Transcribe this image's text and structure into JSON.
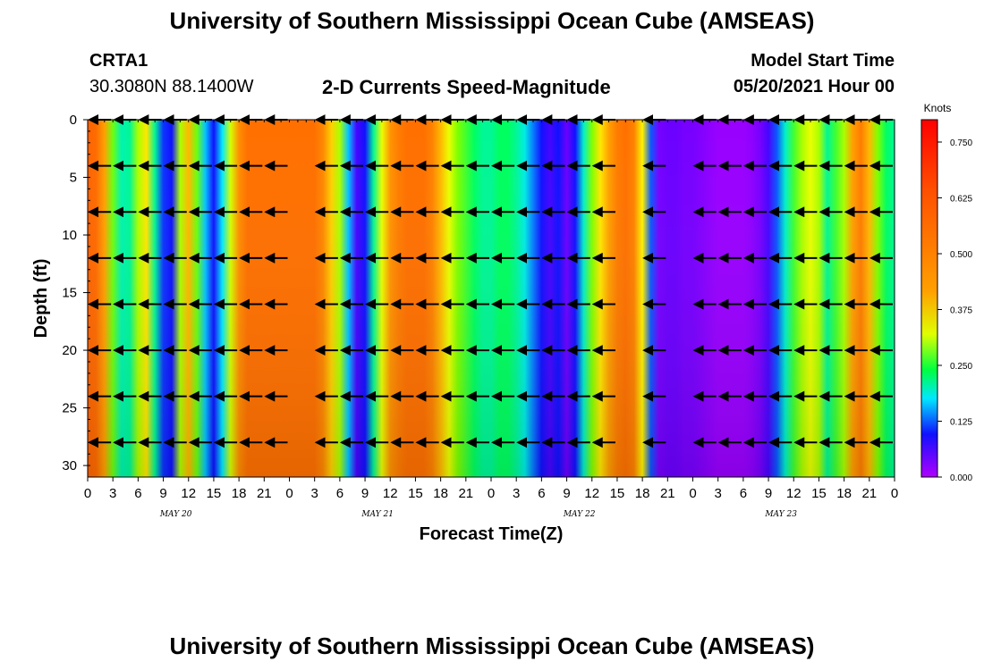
{
  "header": {
    "title": "University of Southern Mississippi Ocean Cube (AMSEAS)",
    "station": "CRTA1",
    "coords": "30.3080N  88.1400W",
    "subtitle": "2-D Currents Speed-Magnitude",
    "model_start_label": "Model Start Time",
    "model_start_value": "05/20/2021 Hour 00"
  },
  "footer": {
    "title": "University of Southern Mississippi Ocean Cube (AMSEAS)"
  },
  "chart_data": {
    "type": "heatmap",
    "title": "2-D Currents Speed-Magnitude",
    "xlabel": "Forecast Time(Z)",
    "ylabel": "Depth (ft)",
    "x_tick_labels": [
      "0",
      "3",
      "6",
      "9",
      "12",
      "15",
      "18",
      "21",
      "0",
      "3",
      "6",
      "9",
      "12",
      "15",
      "18",
      "21",
      "0",
      "3",
      "6",
      "9",
      "12",
      "15",
      "18",
      "21",
      "0",
      "3",
      "6",
      "9",
      "12",
      "15",
      "18",
      "21",
      "0"
    ],
    "date_labels": [
      {
        "label": "MAY 20",
        "hour_index": 3.5
      },
      {
        "label": "MAY 21",
        "hour_index": 11.5
      },
      {
        "label": "MAY 22",
        "hour_index": 19.5
      },
      {
        "label": "MAY 23",
        "hour_index": 27.5
      }
    ],
    "x_range_hours": [
      0,
      96
    ],
    "y_ticks": [
      0,
      5,
      10,
      15,
      20,
      25,
      30
    ],
    "y_range_ft": [
      0,
      31
    ],
    "colorbar": {
      "label": "Knots",
      "range": [
        0,
        0.8
      ],
      "ticks": [
        "0.000",
        "0.125",
        "0.250",
        "0.375",
        "0.500",
        "0.625",
        "0.750"
      ],
      "tick_values": [
        0,
        0.125,
        0.25,
        0.375,
        0.5,
        0.625,
        0.75
      ]
    },
    "speed_profile_hours": [
      0,
      1,
      2,
      3,
      4,
      5,
      6,
      7,
      8,
      9,
      10,
      11,
      12,
      13,
      14,
      15,
      16,
      17,
      18,
      19,
      20,
      21,
      22,
      23,
      24,
      25,
      26,
      27,
      28,
      29,
      30,
      31,
      32,
      33,
      34,
      35,
      36,
      37,
      38,
      39,
      40,
      41,
      42,
      43,
      44,
      45,
      46,
      47,
      48,
      49,
      50,
      51,
      52,
      53,
      54,
      55,
      56,
      57,
      58,
      59,
      60,
      61,
      62,
      63,
      64,
      65,
      66,
      67,
      68,
      69,
      70,
      71,
      72,
      73,
      74,
      75,
      76,
      77,
      78,
      79,
      80,
      81,
      82,
      83,
      84,
      85,
      86,
      87,
      88,
      89,
      90,
      91,
      92,
      93,
      94,
      95,
      96
    ],
    "surface_speed_knots": [
      0.55,
      0.52,
      0.42,
      0.27,
      0.19,
      0.2,
      0.3,
      0.36,
      0.2,
      0.11,
      0.1,
      0.3,
      0.4,
      0.27,
      0.15,
      0.1,
      0.16,
      0.32,
      0.45,
      0.5,
      0.5,
      0.5,
      0.5,
      0.5,
      0.5,
      0.5,
      0.5,
      0.5,
      0.46,
      0.38,
      0.3,
      0.15,
      0.08,
      0.1,
      0.2,
      0.33,
      0.44,
      0.48,
      0.5,
      0.5,
      0.5,
      0.47,
      0.4,
      0.33,
      0.28,
      0.25,
      0.22,
      0.2,
      0.2,
      0.22,
      0.22,
      0.2,
      0.17,
      0.13,
      0.1,
      0.08,
      0.1,
      0.06,
      0.1,
      0.18,
      0.28,
      0.36,
      0.42,
      0.48,
      0.5,
      0.47,
      0.35,
      0.12,
      0.05,
      0.06,
      0.06,
      0.05,
      0.05,
      0.04,
      0.03,
      0.02,
      0.02,
      0.02,
      0.02,
      0.03,
      0.05,
      0.08,
      0.12,
      0.18,
      0.25,
      0.3,
      0.33,
      0.3,
      0.2,
      0.25,
      0.3,
      0.42,
      0.48,
      0.4,
      0.28,
      0.22,
      0.2
    ],
    "vectors": {
      "depths_ft": [
        0,
        4,
        8,
        12,
        16,
        20,
        24,
        28
      ],
      "hours": [
        0,
        3,
        6,
        9,
        12,
        15,
        18,
        21,
        24,
        27,
        30,
        33,
        36,
        39,
        42,
        45,
        48,
        51,
        54,
        57,
        60,
        63,
        66,
        69,
        72,
        75,
        78,
        81,
        84,
        87,
        90,
        93,
        96
      ],
      "direction": "predominantly westward",
      "note": "Current vectors drawn at each depth level"
    }
  }
}
